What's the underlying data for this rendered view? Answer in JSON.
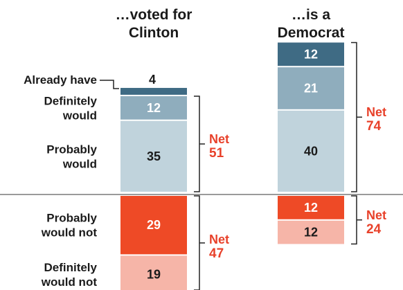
{
  "chart_data": {
    "type": "bar",
    "subtype": "stacked-diverging",
    "categories": [
      "…voted for Clinton",
      "…is a Democrat"
    ],
    "category_lines": [
      [
        "…voted for",
        "Clinton"
      ],
      [
        "…is a",
        "Democrat"
      ]
    ],
    "series": [
      {
        "name": "Already have",
        "label_lines": [
          "Already have"
        ],
        "color": "#3f6b84",
        "values": [
          4,
          12
        ],
        "side": "positive"
      },
      {
        "name": "Definitely would",
        "label_lines": [
          "Definitely",
          "would"
        ],
        "color": "#8fadbd",
        "values": [
          12,
          21
        ],
        "side": "positive"
      },
      {
        "name": "Probably would",
        "label_lines": [
          "Probably",
          "would"
        ],
        "color": "#c0d3dc",
        "values": [
          35,
          40
        ],
        "side": "positive"
      },
      {
        "name": "Probably would not",
        "label_lines": [
          "Probably",
          "would not"
        ],
        "color": "#ee4a26",
        "values": [
          29,
          12
        ],
        "side": "negative"
      },
      {
        "name": "Definitely would not",
        "label_lines": [
          "Definitely",
          "would not"
        ],
        "color": "#f6b5a8",
        "values": [
          19,
          12
        ],
        "side": "negative"
      }
    ],
    "net_label": "Net",
    "net_positive": [
      51,
      74
    ],
    "net_negative": [
      47,
      24
    ],
    "value_text_colors": {
      "on_dark": "#ffffff",
      "on_light": "#1a1a1a"
    },
    "net_color": "#e8412a",
    "baseline_color": "#9a9a9a",
    "bracket_color": "#222222",
    "grid": false,
    "legend": "left"
  }
}
